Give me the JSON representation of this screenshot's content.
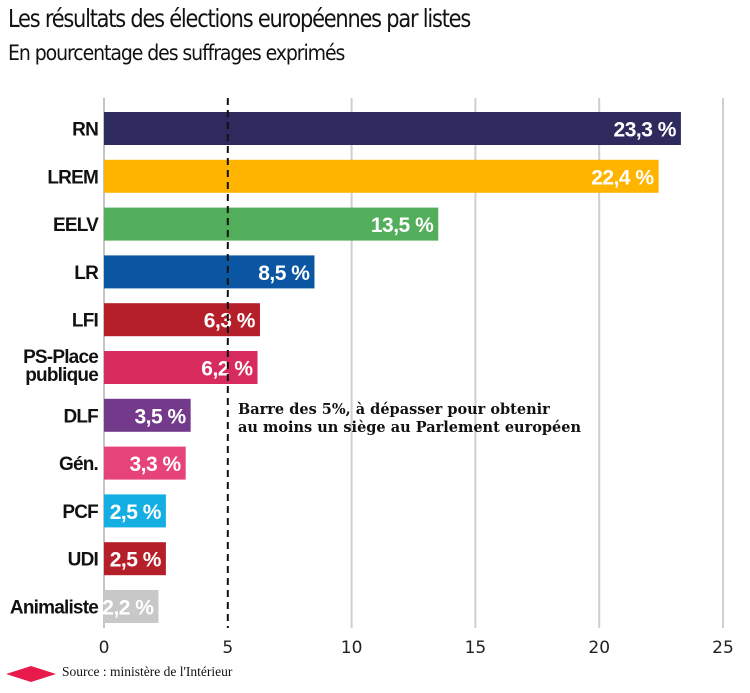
{
  "header": {
    "title": "Les résultats des élections européennes par listes",
    "subtitle": "En pourcentage des suffrages exprimés"
  },
  "footer": {
    "source": "Source : ministère de l'Intérieur",
    "source_icon": "red-diamond-icon",
    "source_icon_color": "#e8194b"
  },
  "annotation": {
    "line1": "Barre des 5%, à dépasser pour obtenir",
    "line2": "au moins un siège au Parlement européen"
  },
  "chart_data": {
    "type": "bar",
    "orientation": "horizontal",
    "title": "Les résultats des élections européennes par listes",
    "subtitle": "En pourcentage des suffrages exprimés",
    "xlabel": "",
    "ylabel": "",
    "xlim": [
      0,
      25
    ],
    "xticks": [
      0,
      5,
      10,
      15,
      20,
      25
    ],
    "grid": true,
    "threshold_line": {
      "value": 5,
      "style": "dashed",
      "label": "Barre des 5%, à dépasser pour obtenir au moins un siège au Parlement européen"
    },
    "categories": [
      {
        "label": [
          "RN"
        ],
        "value": 23.3,
        "display": "23,3 %",
        "color": "#2e2a5e"
      },
      {
        "label": [
          "LREM"
        ],
        "value": 22.4,
        "display": "22,4 %",
        "color": "#ffb400"
      },
      {
        "label": [
          "EELV"
        ],
        "value": 13.5,
        "display": "13,5 %",
        "color": "#52ae5a"
      },
      {
        "label": [
          "LR"
        ],
        "value": 8.5,
        "display": "8,5 %",
        "color": "#0b56a2"
      },
      {
        "label": [
          "LFI"
        ],
        "value": 6.3,
        "display": "6,3 %",
        "color": "#b51f29"
      },
      {
        "label": [
          "PS-Place",
          "publique"
        ],
        "value": 6.2,
        "display": "6,2 %",
        "color": "#d72b5e"
      },
      {
        "label": [
          "DLF"
        ],
        "value": 3.5,
        "display": "3,5 %",
        "color": "#733a8c"
      },
      {
        "label": [
          "Gén."
        ],
        "value": 3.3,
        "display": "3,3 %",
        "color": "#e5437a"
      },
      {
        "label": [
          "PCF"
        ],
        "value": 2.5,
        "display": "2,5 %",
        "color": "#14aee3"
      },
      {
        "label": [
          "UDI"
        ],
        "value": 2.5,
        "display": "2,5 %",
        "color": "#b51f29"
      },
      {
        "label": [
          "Animaliste"
        ],
        "value": 2.2,
        "display": "2,2 %",
        "color": "#c8c8c8"
      }
    ]
  }
}
